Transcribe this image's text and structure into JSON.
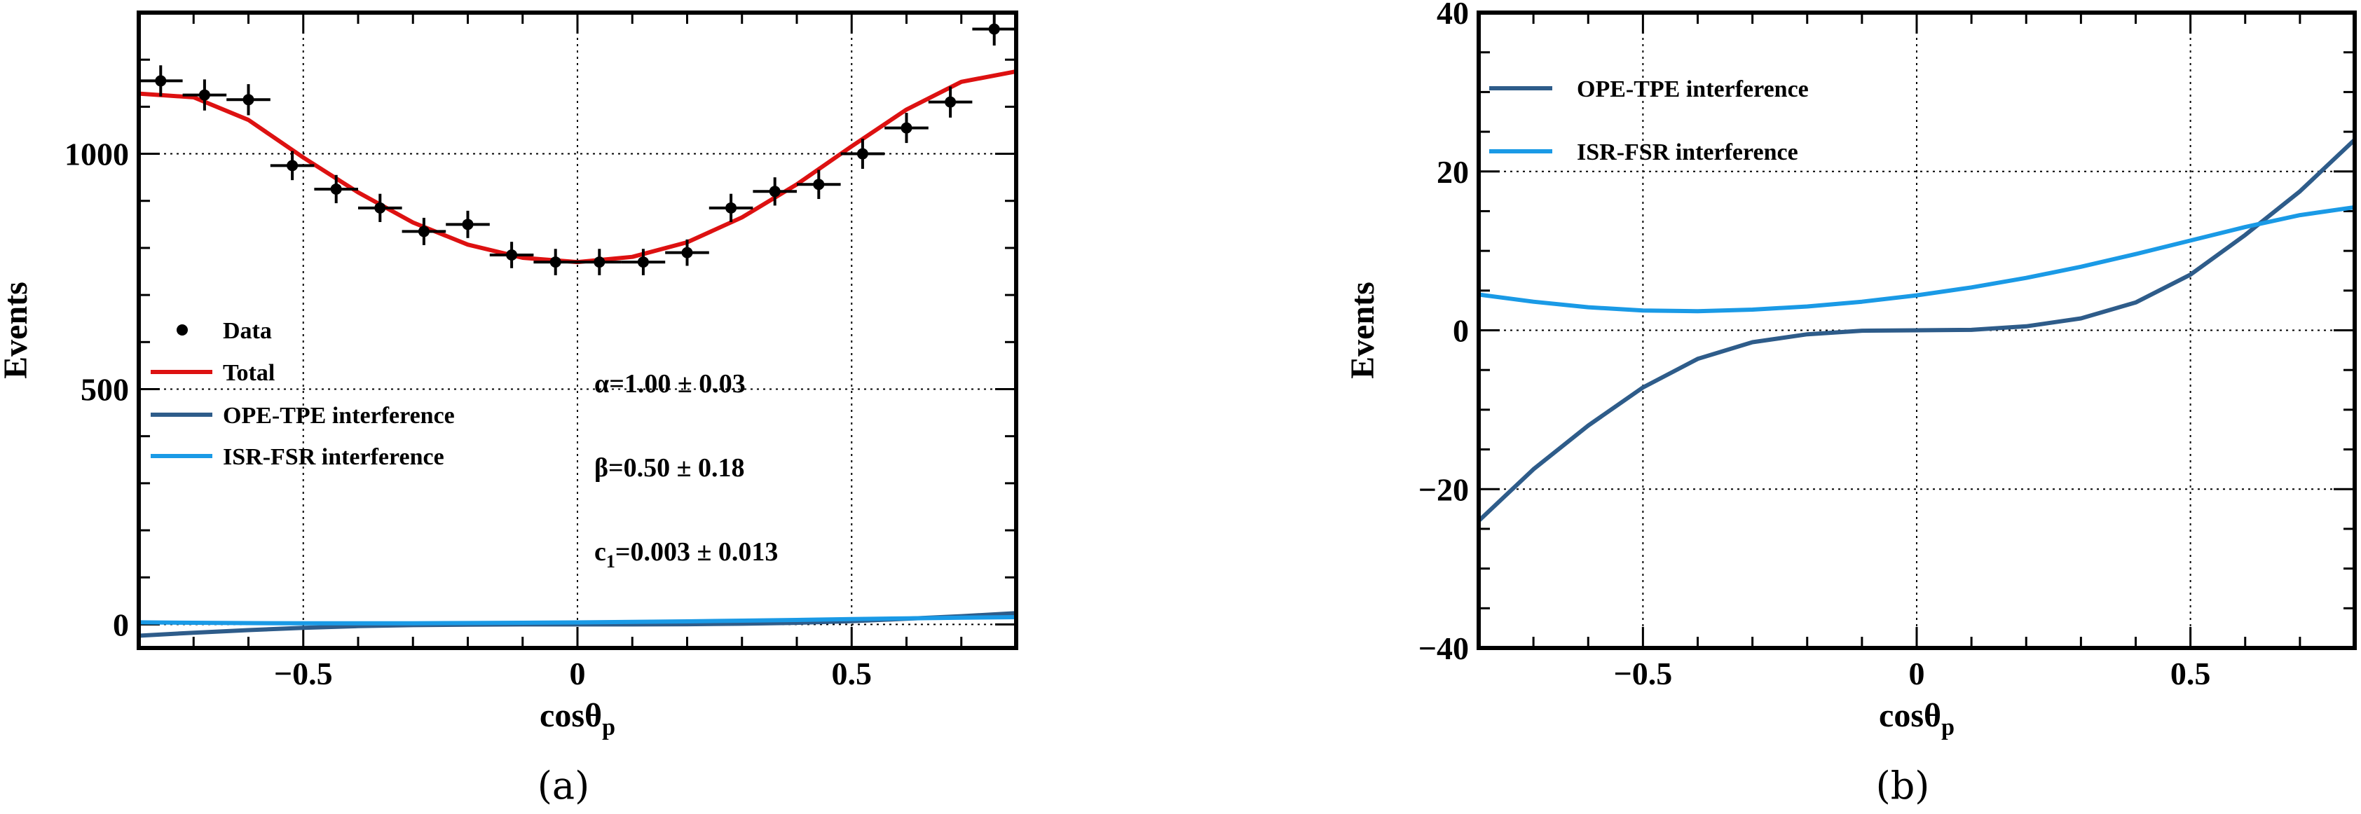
{
  "chart_data": [
    {
      "type": "scatter",
      "caption": "(a)",
      "xlabel": "cosθ",
      "xlabel_sub": "p",
      "ylabel": "Events",
      "xlim": [
        -0.8,
        0.8
      ],
      "ylim": [
        -50,
        1300
      ],
      "xticks": [
        -0.5,
        0,
        0.5
      ],
      "xtick_labels": [
        "−0.5",
        "0",
        "0.5"
      ],
      "yticks": [
        0,
        500,
        1000
      ],
      "ytick_labels": [
        "0",
        "500",
        "1000"
      ],
      "grid": true,
      "legend_position": "center-left",
      "legend": [
        "Data",
        "Total",
        "OPE-TPE interference",
        "ISR-FSR interference"
      ],
      "annotations": [
        {
          "prefix": "α",
          "sub": "",
          "text": "=1.00 ± 0.03"
        },
        {
          "prefix": "β",
          "sub": "",
          "text": "=0.50 ± 0.18"
        },
        {
          "prefix": "c",
          "sub": "1",
          "text": "=0.003 ± 0.013"
        }
      ],
      "data_points": {
        "x": [
          -0.76,
          -0.68,
          -0.6,
          -0.52,
          -0.44,
          -0.36,
          -0.28,
          -0.2,
          -0.12,
          -0.04,
          0.04,
          0.12,
          0.2,
          0.28,
          0.36,
          0.44,
          0.52,
          0.6,
          0.68,
          0.76
        ],
        "y": [
          1155,
          1125,
          1115,
          975,
          925,
          885,
          835,
          850,
          785,
          770,
          770,
          770,
          790,
          885,
          920,
          935,
          1000,
          1055,
          1110,
          1265
        ],
        "xerr": 0.04,
        "yerr": [
          33,
          33,
          33,
          31,
          30,
          30,
          29,
          29,
          28,
          28,
          28,
          28,
          28,
          30,
          30,
          31,
          32,
          32,
          33,
          35
        ]
      },
      "series": [
        {
          "name": "Total",
          "color": "#dd1111",
          "x": [
            -0.8,
            -0.7,
            -0.6,
            -0.5,
            -0.4,
            -0.3,
            -0.2,
            -0.1,
            0.0,
            0.1,
            0.2,
            0.3,
            0.4,
            0.5,
            0.6,
            0.7,
            0.8
          ],
          "values": [
            1128,
            1120,
            1072,
            992,
            918,
            854,
            807,
            779,
            770,
            781,
            812,
            865,
            935,
            1016,
            1094,
            1153,
            1175
          ]
        },
        {
          "name": "OPE-TPE interference",
          "color": "#2e5c8a",
          "x": [
            -0.8,
            -0.7,
            -0.6,
            -0.5,
            -0.4,
            -0.3,
            -0.2,
            -0.1,
            0.0,
            0.1,
            0.2,
            0.3,
            0.4,
            0.5,
            0.6,
            0.7,
            0.8
          ],
          "values": [
            -24,
            -17.5,
            -12,
            -7.2,
            -3.6,
            -1.5,
            -0.5,
            -0.05,
            0,
            0.05,
            0.5,
            1.5,
            3.5,
            7,
            12,
            17.5,
            24
          ]
        },
        {
          "name": "ISR-FSR interference",
          "color": "#1a9ae6",
          "x": [
            -0.8,
            -0.7,
            -0.6,
            -0.5,
            -0.4,
            -0.3,
            -0.2,
            -0.1,
            0.0,
            0.1,
            0.2,
            0.3,
            0.4,
            0.5,
            0.6,
            0.7,
            0.8
          ],
          "values": [
            4.5,
            3.6,
            2.9,
            2.5,
            2.4,
            2.6,
            3.0,
            3.6,
            4.4,
            5.4,
            6.6,
            8.0,
            9.6,
            11.3,
            13.0,
            14.5,
            15.5
          ]
        }
      ]
    },
    {
      "type": "line",
      "caption": "(b)",
      "xlabel": "cosθ",
      "xlabel_sub": "p",
      "ylabel": "Events",
      "xlim": [
        -0.8,
        0.8
      ],
      "ylim": [
        -40,
        40
      ],
      "xticks": [
        -0.5,
        0,
        0.5
      ],
      "xtick_labels": [
        "−0.5",
        "0",
        "0.5"
      ],
      "yticks": [
        -40,
        -20,
        0,
        20,
        40
      ],
      "ytick_labels": [
        "−40",
        "−20",
        "0",
        "20",
        "40"
      ],
      "grid": true,
      "legend_position": "top-left",
      "legend": [
        "OPE-TPE interference",
        "ISR-FSR interference"
      ],
      "series": [
        {
          "name": "OPE-TPE interference",
          "color": "#2e5c8a",
          "x": [
            -0.8,
            -0.7,
            -0.6,
            -0.5,
            -0.4,
            -0.3,
            -0.2,
            -0.1,
            0.0,
            0.1,
            0.2,
            0.3,
            0.4,
            0.5,
            0.6,
            0.7,
            0.8
          ],
          "values": [
            -24,
            -17.5,
            -12,
            -7.2,
            -3.6,
            -1.5,
            -0.5,
            -0.05,
            0,
            0.05,
            0.5,
            1.5,
            3.5,
            7,
            12,
            17.5,
            24
          ]
        },
        {
          "name": "ISR-FSR interference",
          "color": "#1a9ae6",
          "x": [
            -0.8,
            -0.7,
            -0.6,
            -0.5,
            -0.4,
            -0.3,
            -0.2,
            -0.1,
            0.0,
            0.1,
            0.2,
            0.3,
            0.4,
            0.5,
            0.6,
            0.7,
            0.8
          ],
          "values": [
            4.5,
            3.6,
            2.9,
            2.5,
            2.4,
            2.6,
            3.0,
            3.6,
            4.4,
            5.4,
            6.6,
            8.0,
            9.6,
            11.3,
            13.0,
            14.5,
            15.5
          ]
        }
      ]
    }
  ]
}
